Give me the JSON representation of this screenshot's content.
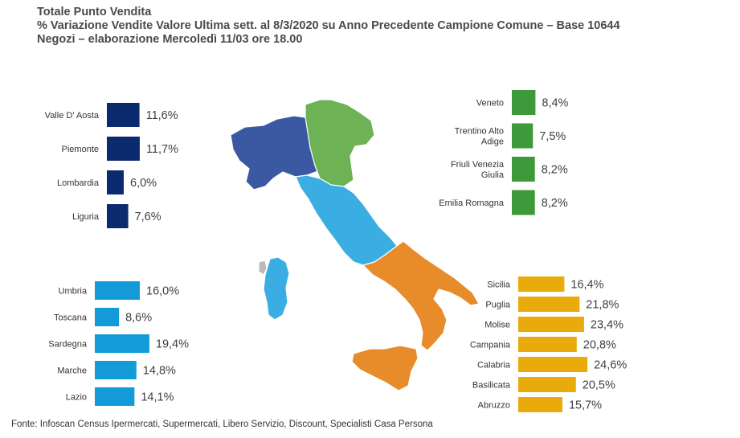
{
  "title_lines": [
    "Totale Punto Vendita",
    "% Variazione Vendite Valore Ultima sett. al 8/3/2020 su Anno Precedente Campione Comune – Base 10644",
    "Negozi – elaborazione Mercoledì 11/03 ore 18.00"
  ],
  "source": "Fonte: Infoscan Census Ipermercati, Supermercati, Libero Servizio, Discount, Specialisti Casa Persona",
  "colors": {
    "north_west": "#0c2a6e",
    "north_east": "#3d9a3a",
    "centre": "#139bd9",
    "south": "#e9ab0c",
    "map_north_west": "#3b59a3",
    "map_north_east": "#6db255",
    "map_centre": "#3aaee3",
    "map_south": "#e88b2a"
  },
  "chart_data": [
    {
      "type": "bar",
      "orientation": "horizontal",
      "group": "north_west",
      "categories": [
        "Valle D' Aosta",
        "Piemonte",
        "Lombardia",
        "Liguria"
      ],
      "categories_lines": [
        [
          "Valle D' Aosta"
        ],
        [
          "Piemonte"
        ],
        [
          "Lombardia"
        ],
        [
          "Liguria"
        ]
      ],
      "values": [
        11.6,
        11.7,
        6.0,
        7.6
      ],
      "value_labels": [
        "11,6%",
        "11,7%",
        "6,0%",
        "7,6%"
      ]
    },
    {
      "type": "bar",
      "orientation": "horizontal",
      "group": "north_east",
      "categories": [
        "Veneto",
        "Trentino Alto Adige",
        "Friuli Venezia Giulia",
        "Emilia Romagna"
      ],
      "categories_lines": [
        [
          "Veneto"
        ],
        [
          "Trentino Alto",
          "Adige"
        ],
        [
          "Friuli Venezia",
          "Giulia"
        ],
        [
          "Emilia Romagna"
        ]
      ],
      "values": [
        8.4,
        7.5,
        8.2,
        8.2
      ],
      "value_labels": [
        "8,4%",
        "7,5%",
        "8,2%",
        "8,2%"
      ]
    },
    {
      "type": "bar",
      "orientation": "horizontal",
      "group": "centre",
      "categories": [
        "Umbria",
        "Toscana",
        "Sardegna",
        "Marche",
        "Lazio"
      ],
      "categories_lines": [
        [
          "Umbria"
        ],
        [
          "Toscana"
        ],
        [
          "Sardegna"
        ],
        [
          "Marche"
        ],
        [
          "Lazio"
        ]
      ],
      "values": [
        16.0,
        8.6,
        19.4,
        14.8,
        14.1
      ],
      "value_labels": [
        "16,0%",
        "8,6%",
        "19,4%",
        "14,8%",
        "14,1%"
      ]
    },
    {
      "type": "bar",
      "orientation": "horizontal",
      "group": "south",
      "categories": [
        "Sicilia",
        "Puglia",
        "Molise",
        "Campania",
        "Calabria",
        "Basilicata",
        "Abruzzo"
      ],
      "categories_lines": [
        [
          "Sicilia"
        ],
        [
          "Puglia"
        ],
        [
          "Molise"
        ],
        [
          "Campania"
        ],
        [
          "Calabria"
        ],
        [
          "Basilicata"
        ],
        [
          "Abruzzo"
        ]
      ],
      "values": [
        16.4,
        21.8,
        23.4,
        20.8,
        24.6,
        20.5,
        15.7
      ],
      "value_labels": [
        "16,4%",
        "21,8%",
        "23,4%",
        "20,8%",
        "24,6%",
        "20,5%",
        "15,7%"
      ]
    }
  ]
}
